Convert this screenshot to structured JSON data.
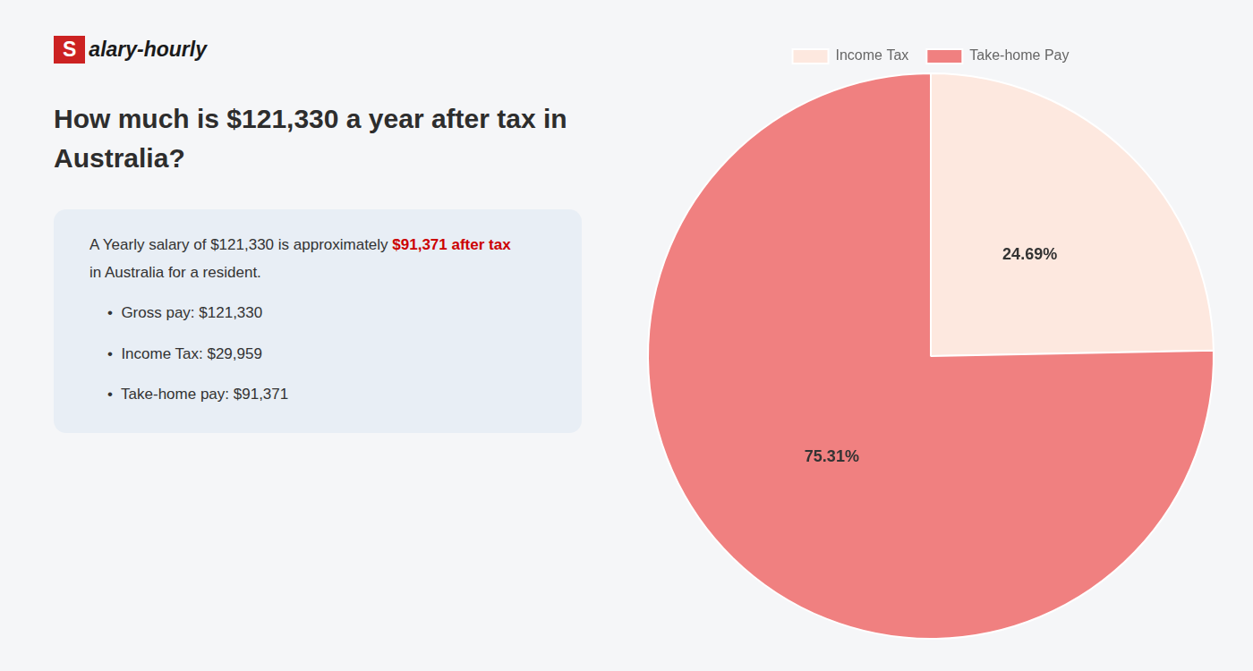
{
  "chart_data": {
    "type": "pie",
    "title": [
      "How much is $121,330 a year after tax in",
      "Australia?"
    ],
    "annotations": [
      [
        {
          "text": "S"
        },
        {
          "text": "alary-hourly"
        }
      ],
      [
        {
          "text": "A Yearly salary of $121,330 is approximately "
        },
        {
          "text": "$91,371 after tax",
          "color": "#cc0000"
        }
      ],
      [
        {
          "text": "in Australia for a resident."
        }
      ],
      [
        {
          "text": "•  Gross pay: $121,330"
        }
      ],
      [
        {
          "text": "•  Income Tax: $29,959"
        }
      ],
      [
        {
          "text": "•  Take-home pay: $91,371"
        }
      ]
    ],
    "categories": [
      "Income Tax",
      "Take-home Pay"
    ],
    "values": [
      24.69,
      75.31
    ],
    "value_labels": [
      "24.69%",
      "75.31%"
    ],
    "colors": [
      "#fde8df",
      "#f08080"
    ],
    "data_labels": true,
    "legend": "top"
  }
}
